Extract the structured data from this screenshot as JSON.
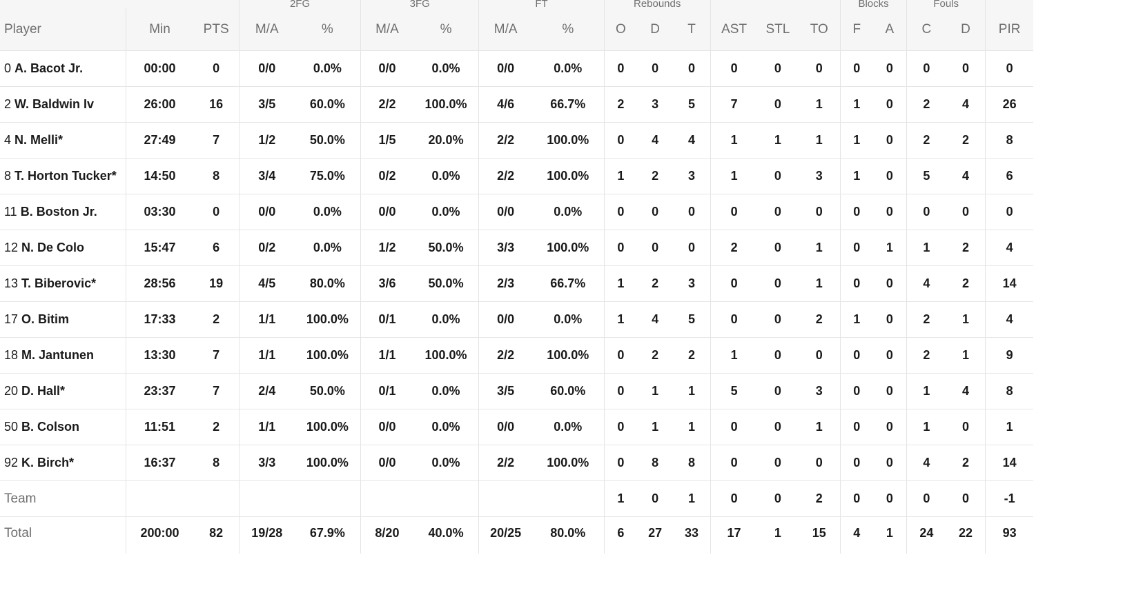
{
  "header": {
    "groups": [
      "2FG",
      "3FG",
      "FT",
      "Rebounds",
      "Blocks",
      "Fouls"
    ],
    "columns": {
      "player": "Player",
      "min": "Min",
      "pts": "PTS",
      "fg2_ma": "M/A",
      "fg2_pct": "%",
      "fg3_ma": "M/A",
      "fg3_pct": "%",
      "ft_ma": "M/A",
      "ft_pct": "%",
      "reb_o": "O",
      "reb_d": "D",
      "reb_t": "T",
      "ast": "AST",
      "stl": "STL",
      "to": "TO",
      "blk_f": "F",
      "blk_a": "A",
      "foul_c": "C",
      "foul_d": "D",
      "pir": "PIR"
    }
  },
  "players": [
    {
      "num": "0",
      "name": "A. Bacot Jr.",
      "min": "00:00",
      "pts": "0",
      "fg2": "0/0",
      "fg2p": "0.0%",
      "fg3": "0/0",
      "fg3p": "0.0%",
      "ft": "0/0",
      "ftp": "0.0%",
      "o": "0",
      "d": "0",
      "t": "0",
      "ast": "0",
      "stl": "0",
      "to": "0",
      "bf": "0",
      "ba": "0",
      "fc": "0",
      "fd": "0",
      "pir": "0"
    },
    {
      "num": "2",
      "name": "W. Baldwin Iv",
      "min": "26:00",
      "pts": "16",
      "fg2": "3/5",
      "fg2p": "60.0%",
      "fg3": "2/2",
      "fg3p": "100.0%",
      "ft": "4/6",
      "ftp": "66.7%",
      "o": "2",
      "d": "3",
      "t": "5",
      "ast": "7",
      "stl": "0",
      "to": "1",
      "bf": "1",
      "ba": "0",
      "fc": "2",
      "fd": "4",
      "pir": "26"
    },
    {
      "num": "4",
      "name": "N. Melli*",
      "min": "27:49",
      "pts": "7",
      "fg2": "1/2",
      "fg2p": "50.0%",
      "fg3": "1/5",
      "fg3p": "20.0%",
      "ft": "2/2",
      "ftp": "100.0%",
      "o": "0",
      "d": "4",
      "t": "4",
      "ast": "1",
      "stl": "1",
      "to": "1",
      "bf": "1",
      "ba": "0",
      "fc": "2",
      "fd": "2",
      "pir": "8"
    },
    {
      "num": "8",
      "name": "T. Horton Tucker*",
      "min": "14:50",
      "pts": "8",
      "fg2": "3/4",
      "fg2p": "75.0%",
      "fg3": "0/2",
      "fg3p": "0.0%",
      "ft": "2/2",
      "ftp": "100.0%",
      "o": "1",
      "d": "2",
      "t": "3",
      "ast": "1",
      "stl": "0",
      "to": "3",
      "bf": "1",
      "ba": "0",
      "fc": "5",
      "fd": "4",
      "pir": "6"
    },
    {
      "num": "11",
      "name": "B. Boston Jr.",
      "min": "03:30",
      "pts": "0",
      "fg2": "0/0",
      "fg2p": "0.0%",
      "fg3": "0/0",
      "fg3p": "0.0%",
      "ft": "0/0",
      "ftp": "0.0%",
      "o": "0",
      "d": "0",
      "t": "0",
      "ast": "0",
      "stl": "0",
      "to": "0",
      "bf": "0",
      "ba": "0",
      "fc": "0",
      "fd": "0",
      "pir": "0"
    },
    {
      "num": "12",
      "name": "N. De Colo",
      "min": "15:47",
      "pts": "6",
      "fg2": "0/2",
      "fg2p": "0.0%",
      "fg3": "1/2",
      "fg3p": "50.0%",
      "ft": "3/3",
      "ftp": "100.0%",
      "o": "0",
      "d": "0",
      "t": "0",
      "ast": "2",
      "stl": "0",
      "to": "1",
      "bf": "0",
      "ba": "1",
      "fc": "1",
      "fd": "2",
      "pir": "4"
    },
    {
      "num": "13",
      "name": "T. Biberovic*",
      "min": "28:56",
      "pts": "19",
      "fg2": "4/5",
      "fg2p": "80.0%",
      "fg3": "3/6",
      "fg3p": "50.0%",
      "ft": "2/3",
      "ftp": "66.7%",
      "o": "1",
      "d": "2",
      "t": "3",
      "ast": "0",
      "stl": "0",
      "to": "1",
      "bf": "0",
      "ba": "0",
      "fc": "4",
      "fd": "2",
      "pir": "14"
    },
    {
      "num": "17",
      "name": "O. Bitim",
      "min": "17:33",
      "pts": "2",
      "fg2": "1/1",
      "fg2p": "100.0%",
      "fg3": "0/1",
      "fg3p": "0.0%",
      "ft": "0/0",
      "ftp": "0.0%",
      "o": "1",
      "d": "4",
      "t": "5",
      "ast": "0",
      "stl": "0",
      "to": "2",
      "bf": "1",
      "ba": "0",
      "fc": "2",
      "fd": "1",
      "pir": "4"
    },
    {
      "num": "18",
      "name": "M. Jantunen",
      "min": "13:30",
      "pts": "7",
      "fg2": "1/1",
      "fg2p": "100.0%",
      "fg3": "1/1",
      "fg3p": "100.0%",
      "ft": "2/2",
      "ftp": "100.0%",
      "o": "0",
      "d": "2",
      "t": "2",
      "ast": "1",
      "stl": "0",
      "to": "0",
      "bf": "0",
      "ba": "0",
      "fc": "2",
      "fd": "1",
      "pir": "9"
    },
    {
      "num": "20",
      "name": "D. Hall*",
      "min": "23:37",
      "pts": "7",
      "fg2": "2/4",
      "fg2p": "50.0%",
      "fg3": "0/1",
      "fg3p": "0.0%",
      "ft": "3/5",
      "ftp": "60.0%",
      "o": "0",
      "d": "1",
      "t": "1",
      "ast": "5",
      "stl": "0",
      "to": "3",
      "bf": "0",
      "ba": "0",
      "fc": "1",
      "fd": "4",
      "pir": "8"
    },
    {
      "num": "50",
      "name": "B. Colson",
      "min": "11:51",
      "pts": "2",
      "fg2": "1/1",
      "fg2p": "100.0%",
      "fg3": "0/0",
      "fg3p": "0.0%",
      "ft": "0/0",
      "ftp": "0.0%",
      "o": "0",
      "d": "1",
      "t": "1",
      "ast": "0",
      "stl": "0",
      "to": "1",
      "bf": "0",
      "ba": "0",
      "fc": "1",
      "fd": "0",
      "pir": "1"
    },
    {
      "num": "92",
      "name": "K. Birch*",
      "min": "16:37",
      "pts": "8",
      "fg2": "3/3",
      "fg2p": "100.0%",
      "fg3": "0/0",
      "fg3p": "0.0%",
      "ft": "2/2",
      "ftp": "100.0%",
      "o": "0",
      "d": "8",
      "t": "8",
      "ast": "0",
      "stl": "0",
      "to": "0",
      "bf": "0",
      "ba": "0",
      "fc": "4",
      "fd": "2",
      "pir": "14"
    }
  ],
  "team": {
    "label": "Team",
    "min": "",
    "pts": "",
    "fg2": "",
    "fg2p": "",
    "fg3": "",
    "fg3p": "",
    "ft": "",
    "ftp": "",
    "o": "1",
    "d": "0",
    "t": "1",
    "ast": "0",
    "stl": "0",
    "to": "2",
    "bf": "0",
    "ba": "0",
    "fc": "0",
    "fd": "0",
    "pir": "-1"
  },
  "total": {
    "label": "Total",
    "min": "200:00",
    "pts": "82",
    "fg2": "19/28",
    "fg2p": "67.9%",
    "fg3": "8/20",
    "fg3p": "40.0%",
    "ft": "20/25",
    "ftp": "80.0%",
    "o": "6",
    "d": "27",
    "t": "33",
    "ast": "17",
    "stl": "1",
    "to": "15",
    "bf": "4",
    "ba": "1",
    "fc": "24",
    "fd": "22",
    "pir": "93"
  }
}
